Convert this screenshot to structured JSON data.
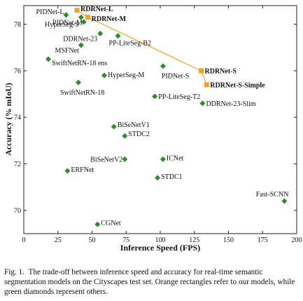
{
  "chart_data": {
    "type": "scatter",
    "xlabel": "Inference Speed (FPS)",
    "ylabel": "Accuracy (% mIoU)",
    "xlim": [
      0,
      200
    ],
    "ylim": [
      69,
      78.8
    ],
    "xticks": [
      "0",
      "25",
      "50",
      "75",
      "100",
      "125",
      "150",
      "175",
      "200"
    ],
    "yticks": [
      "70",
      "72",
      "74",
      "76",
      "78"
    ],
    "grid": false,
    "series": [
      {
        "marker": "square",
        "color": "#f5a02a",
        "connected": true,
        "points": [
          {
            "label": "RDRNet-L",
            "x": 39,
            "y": 78.6
          },
          {
            "label": "RDRNet-M",
            "x": 47,
            "y": 78.3
          },
          {
            "label": "RDRNet-S",
            "x": 130,
            "y": 76.0
          },
          {
            "label": "RDRNet-S-Simple",
            "x": 134,
            "y": 75.4
          }
        ]
      },
      {
        "marker": "diamond",
        "color": "#2e8b2e",
        "connected": false,
        "points": [
          {
            "label": "PIDNet-L",
            "x": 31,
            "y": 78.4
          },
          {
            "label": "PIDNet-M",
            "x": 44,
            "y": 78.1
          },
          {
            "label": "HyperSeg-S",
            "x": 42,
            "y": 78.3
          },
          {
            "label": "DDRNet-23",
            "x": 56,
            "y": 77.6
          },
          {
            "label": "PP-LiteSeg-B2",
            "x": 69,
            "y": 77.5
          },
          {
            "label": "MSFNet",
            "x": 42,
            "y": 77.1
          },
          {
            "label": "SwiftNetRN-18 ens",
            "x": 18,
            "y": 76.5
          },
          {
            "label": "HyperSeg-M",
            "x": 59,
            "y": 75.8
          },
          {
            "label": "PIDNet-S",
            "x": 102,
            "y": 76.2
          },
          {
            "label": "SwiftNetRN-18",
            "x": 40,
            "y": 75.5
          },
          {
            "label": "PP-LiteSeg-T2",
            "x": 96,
            "y": 74.9
          },
          {
            "label": "DDRNet-23-Slim",
            "x": 131,
            "y": 74.6
          },
          {
            "label": "BiSeNetV1",
            "x": 66,
            "y": 73.6
          },
          {
            "label": "STDC2",
            "x": 74,
            "y": 73.2
          },
          {
            "label": "BiSeNetV2",
            "x": 74,
            "y": 72.2
          },
          {
            "label": "ICNet",
            "x": 102,
            "y": 72.2
          },
          {
            "label": "ERFNet",
            "x": 32,
            "y": 71.7
          },
          {
            "label": "STDC1",
            "x": 98,
            "y": 71.4
          },
          {
            "label": "Fast-SCNN",
            "x": 191,
            "y": 70.4
          },
          {
            "label": "CGNet",
            "x": 54,
            "y": 69.4
          }
        ]
      }
    ]
  },
  "caption": {
    "prefix": "Fig. 1.",
    "text": "The trade-off between inference speed and accuracy for real-time semantic segmentation models on the Cityscapes test set. Orange rectangles refer to our models, while green diamonds represent others."
  }
}
